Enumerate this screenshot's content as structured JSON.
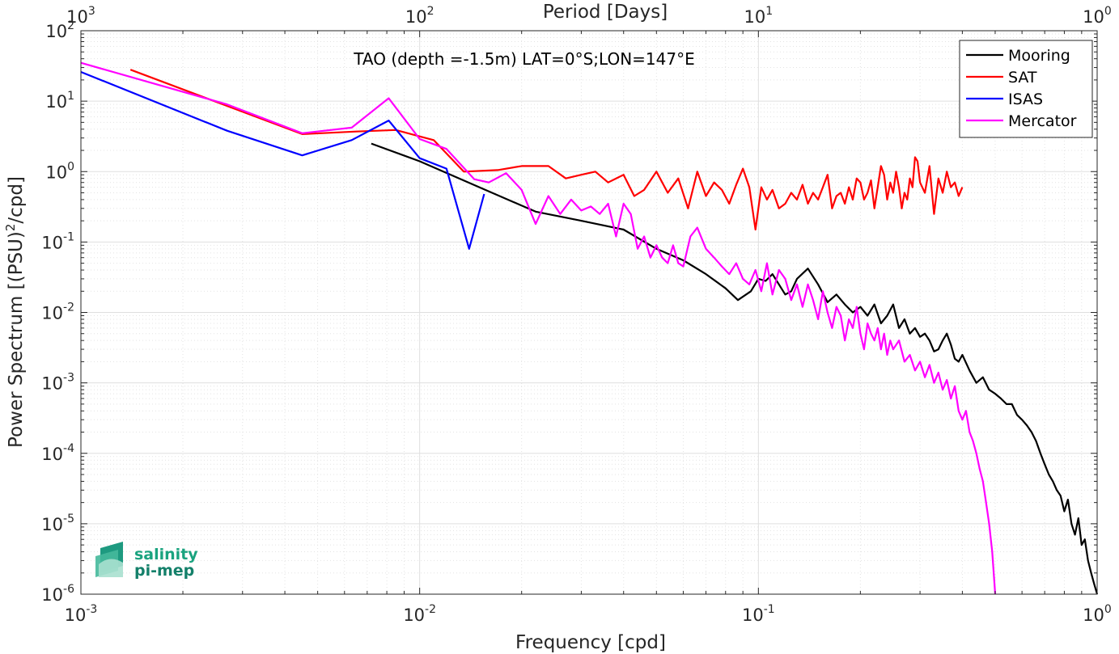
{
  "chart_data": {
    "type": "line",
    "title": "",
    "annotation": "TAO (depth =-1.5m) LAT=0°S;LON=147°E",
    "xlabel": "Frequency [cpd]",
    "ylabel": "Power Spectrum [(PSU)^2/cpd]",
    "top_xlabel": "Period [Days]",
    "xscale": "log",
    "yscale": "log",
    "xlim": [
      0.001,
      1
    ],
    "ylim": [
      1e-06,
      100
    ],
    "grid": true,
    "legend_position": "top-right",
    "x_ticks": [
      {
        "base": "10",
        "exp": "-3",
        "v": 0.001
      },
      {
        "base": "10",
        "exp": "-2",
        "v": 0.01
      },
      {
        "base": "10",
        "exp": "-1",
        "v": 0.1
      },
      {
        "base": "10",
        "exp": "0",
        "v": 1
      }
    ],
    "y_ticks": [
      {
        "base": "10",
        "exp": "-6",
        "v": 1e-06
      },
      {
        "base": "10",
        "exp": "-5",
        "v": 1e-05
      },
      {
        "base": "10",
        "exp": "-4",
        "v": 0.0001
      },
      {
        "base": "10",
        "exp": "-3",
        "v": 0.001
      },
      {
        "base": "10",
        "exp": "-2",
        "v": 0.01
      },
      {
        "base": "10",
        "exp": "-1",
        "v": 0.1
      },
      {
        "base": "10",
        "exp": "0",
        "v": 1
      },
      {
        "base": "10",
        "exp": "1",
        "v": 10
      },
      {
        "base": "10",
        "exp": "2",
        "v": 100
      }
    ],
    "top_ticks": [
      {
        "base": "10",
        "exp": "3",
        "v": 0.001
      },
      {
        "base": "10",
        "exp": "2",
        "v": 0.01
      },
      {
        "base": "10",
        "exp": "1",
        "v": 0.1
      },
      {
        "base": "10",
        "exp": "0",
        "v": 1
      }
    ],
    "series": [
      {
        "name": "Mooring",
        "color": "#000000",
        "x": [
          0.0072,
          0.01,
          0.015,
          0.022,
          0.03,
          0.04,
          0.05,
          0.06,
          0.07,
          0.08,
          0.087,
          0.095,
          0.1,
          0.105,
          0.11,
          0.115,
          0.12,
          0.125,
          0.13,
          0.14,
          0.15,
          0.16,
          0.17,
          0.18,
          0.19,
          0.2,
          0.21,
          0.22,
          0.23,
          0.24,
          0.25,
          0.26,
          0.27,
          0.28,
          0.29,
          0.3,
          0.31,
          0.32,
          0.33,
          0.34,
          0.35,
          0.36,
          0.37,
          0.38,
          0.39,
          0.4,
          0.42,
          0.44,
          0.46,
          0.48,
          0.5,
          0.52,
          0.54,
          0.56,
          0.58,
          0.6,
          0.62,
          0.64,
          0.66,
          0.68,
          0.7,
          0.72,
          0.74,
          0.76,
          0.78,
          0.8,
          0.82,
          0.84,
          0.86,
          0.88,
          0.9,
          0.92,
          0.94,
          0.96,
          0.98,
          1.0
        ],
        "y": [
          2.5,
          1.4,
          0.6,
          0.27,
          0.2,
          0.15,
          0.08,
          0.055,
          0.035,
          0.022,
          0.015,
          0.02,
          0.03,
          0.028,
          0.035,
          0.025,
          0.018,
          0.02,
          0.03,
          0.042,
          0.025,
          0.014,
          0.018,
          0.013,
          0.01,
          0.012,
          0.009,
          0.013,
          0.007,
          0.009,
          0.013,
          0.006,
          0.008,
          0.005,
          0.006,
          0.0045,
          0.005,
          0.004,
          0.0028,
          0.003,
          0.004,
          0.005,
          0.0035,
          0.0022,
          0.002,
          0.0025,
          0.0015,
          0.001,
          0.0012,
          0.0008,
          0.0007,
          0.0006,
          0.0005,
          0.0005,
          0.00035,
          0.0003,
          0.00025,
          0.0002,
          0.00015,
          0.0001,
          7e-05,
          5e-05,
          4e-05,
          3e-05,
          2.5e-05,
          1.5e-05,
          2.2e-05,
          1e-05,
          7e-06,
          1.2e-05,
          5e-06,
          6e-06,
          3e-06,
          2e-06,
          1.4e-06,
          1e-06
        ]
      },
      {
        "name": "SAT",
        "color": "#ff0000",
        "x": [
          0.0014,
          0.0045,
          0.0065,
          0.0085,
          0.011,
          0.0135,
          0.017,
          0.02,
          0.024,
          0.027,
          0.03,
          0.033,
          0.036,
          0.04,
          0.043,
          0.046,
          0.05,
          0.054,
          0.058,
          0.062,
          0.066,
          0.07,
          0.074,
          0.078,
          0.082,
          0.086,
          0.09,
          0.094,
          0.098,
          0.102,
          0.106,
          0.11,
          0.115,
          0.12,
          0.125,
          0.13,
          0.135,
          0.14,
          0.145,
          0.15,
          0.155,
          0.16,
          0.165,
          0.17,
          0.175,
          0.18,
          0.185,
          0.19,
          0.195,
          0.2,
          0.205,
          0.21,
          0.215,
          0.22,
          0.225,
          0.23,
          0.235,
          0.24,
          0.245,
          0.25,
          0.255,
          0.26,
          0.265,
          0.27,
          0.275,
          0.28,
          0.285,
          0.29,
          0.295,
          0.3,
          0.31,
          0.32,
          0.33,
          0.34,
          0.35,
          0.36,
          0.37,
          0.38,
          0.39,
          0.4
        ],
        "y": [
          28,
          3.4,
          3.7,
          3.9,
          2.8,
          1.0,
          1.05,
          1.2,
          1.2,
          0.8,
          0.9,
          1.0,
          0.7,
          0.9,
          0.45,
          0.55,
          1.0,
          0.5,
          0.8,
          0.3,
          1.0,
          0.45,
          0.7,
          0.55,
          0.35,
          0.65,
          1.1,
          0.6,
          0.15,
          0.6,
          0.4,
          0.55,
          0.3,
          0.35,
          0.5,
          0.4,
          0.65,
          0.35,
          0.5,
          0.4,
          0.6,
          0.9,
          0.3,
          0.45,
          0.5,
          0.35,
          0.6,
          0.4,
          0.8,
          0.7,
          0.4,
          0.5,
          0.75,
          0.3,
          0.6,
          1.2,
          0.9,
          0.4,
          0.7,
          0.5,
          1.0,
          0.6,
          0.3,
          0.5,
          0.4,
          0.8,
          0.6,
          1.6,
          1.4,
          0.7,
          0.5,
          1.2,
          0.25,
          0.8,
          0.5,
          1.0,
          0.6,
          0.7,
          0.45,
          0.6
        ]
      },
      {
        "name": "ISAS",
        "color": "#0000ff",
        "x": [
          0.001,
          0.0027,
          0.0045,
          0.0063,
          0.0081,
          0.01,
          0.012,
          0.014,
          0.0155
        ],
        "y": [
          26,
          3.8,
          1.7,
          2.8,
          5.3,
          1.55,
          1.1,
          0.08,
          0.48
        ]
      },
      {
        "name": "Mercator",
        "color": "#ff00ff",
        "x": [
          0.001,
          0.0027,
          0.0045,
          0.0063,
          0.0081,
          0.01,
          0.012,
          0.0145,
          0.016,
          0.018,
          0.02,
          0.022,
          0.024,
          0.026,
          0.028,
          0.03,
          0.032,
          0.034,
          0.036,
          0.038,
          0.04,
          0.042,
          0.044,
          0.046,
          0.048,
          0.05,
          0.052,
          0.054,
          0.056,
          0.058,
          0.06,
          0.063,
          0.066,
          0.07,
          0.074,
          0.078,
          0.082,
          0.086,
          0.09,
          0.094,
          0.098,
          0.102,
          0.106,
          0.11,
          0.115,
          0.12,
          0.125,
          0.13,
          0.135,
          0.14,
          0.145,
          0.15,
          0.155,
          0.16,
          0.165,
          0.17,
          0.175,
          0.18,
          0.185,
          0.19,
          0.195,
          0.2,
          0.205,
          0.21,
          0.215,
          0.22,
          0.225,
          0.23,
          0.235,
          0.24,
          0.245,
          0.25,
          0.26,
          0.27,
          0.28,
          0.29,
          0.3,
          0.31,
          0.32,
          0.33,
          0.34,
          0.35,
          0.36,
          0.37,
          0.38,
          0.39,
          0.4,
          0.41,
          0.42,
          0.43,
          0.44,
          0.45,
          0.46,
          0.47,
          0.48,
          0.49,
          0.5
        ],
        "y": [
          35,
          9,
          3.5,
          4.2,
          11,
          2.9,
          2.1,
          0.78,
          0.7,
          0.95,
          0.55,
          0.18,
          0.45,
          0.25,
          0.4,
          0.28,
          0.32,
          0.25,
          0.35,
          0.12,
          0.35,
          0.25,
          0.08,
          0.12,
          0.06,
          0.09,
          0.06,
          0.05,
          0.09,
          0.05,
          0.045,
          0.12,
          0.16,
          0.08,
          0.06,
          0.045,
          0.035,
          0.05,
          0.03,
          0.025,
          0.04,
          0.02,
          0.05,
          0.018,
          0.04,
          0.03,
          0.015,
          0.025,
          0.012,
          0.025,
          0.015,
          0.008,
          0.02,
          0.01,
          0.006,
          0.012,
          0.009,
          0.004,
          0.008,
          0.006,
          0.012,
          0.005,
          0.003,
          0.007,
          0.005,
          0.004,
          0.006,
          0.003,
          0.005,
          0.0025,
          0.004,
          0.003,
          0.004,
          0.002,
          0.0025,
          0.0015,
          0.002,
          0.0012,
          0.0018,
          0.001,
          0.0014,
          0.0008,
          0.0011,
          0.0006,
          0.0009,
          0.0004,
          0.0003,
          0.0004,
          0.0002,
          0.00015,
          0.0001,
          6e-05,
          4e-05,
          2e-05,
          1e-05,
          4e-06,
          1e-06
        ]
      }
    ]
  },
  "logo": {
    "line1": "salinity",
    "line2": "pi-mep"
  }
}
